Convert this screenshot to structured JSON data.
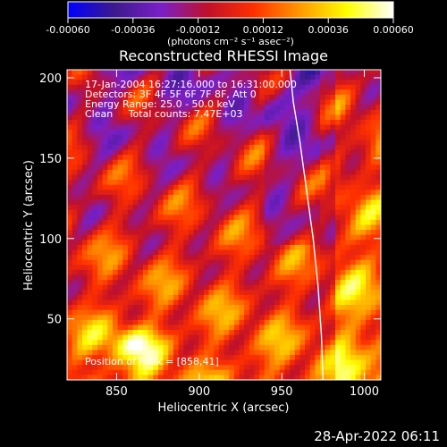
{
  "chart_data": {
    "type": "heatmap",
    "title": "Reconstructed RHESSI Image",
    "xlabel": "Heliocentric X (arcsec)",
    "ylabel": "Heliocentric Y (arcsec)",
    "xlim": [
      820,
      1010
    ],
    "ylim": [
      12,
      205
    ],
    "x_ticks": [
      850,
      900,
      950,
      1000
    ],
    "y_ticks": [
      50,
      100,
      150,
      200
    ],
    "colorbar": {
      "range": [
        -0.0006,
        0.0006
      ],
      "tick_values": [
        -0.0006,
        -0.00036,
        -0.00012,
        0.00012,
        0.00036,
        0.0006
      ],
      "tick_labels": [
        "-0.00060",
        "-0.00036",
        "-0.00012",
        "0.00012",
        "0.00036",
        "0.00060"
      ],
      "unit_label": "(photons cm⁻² s⁻¹ asec⁻²)",
      "colormap": [
        "#0000ff",
        "#3c1a8c",
        "#7a1fc8",
        "#c0102a",
        "#ff3000",
        "#ff9a00",
        "#ffff00",
        "#ffffff"
      ]
    },
    "annotations": [
      "17-Jan-2004 16:27:16.000 to 16:31:00.000",
      "Detectors: 3F 4F 5F 6F 7F 8F, Att 0",
      "Energy Range: 25.0 - 50.0 keV",
      "Clean     Total counts: 7.47E+03"
    ],
    "peak_label": "Position of Peak = [858,41]",
    "peak": [
      858,
      41
    ],
    "limb_curve": [
      [
        955,
        205
      ],
      [
        957,
        185
      ],
      [
        961,
        160
      ],
      [
        965,
        130
      ],
      [
        969,
        100
      ],
      [
        972,
        70
      ],
      [
        974,
        40
      ],
      [
        975,
        12
      ]
    ]
  },
  "timestamp": "28-Apr-2022 06:11",
  "colors": {
    "background": "#000000",
    "text": "#ffffff"
  }
}
